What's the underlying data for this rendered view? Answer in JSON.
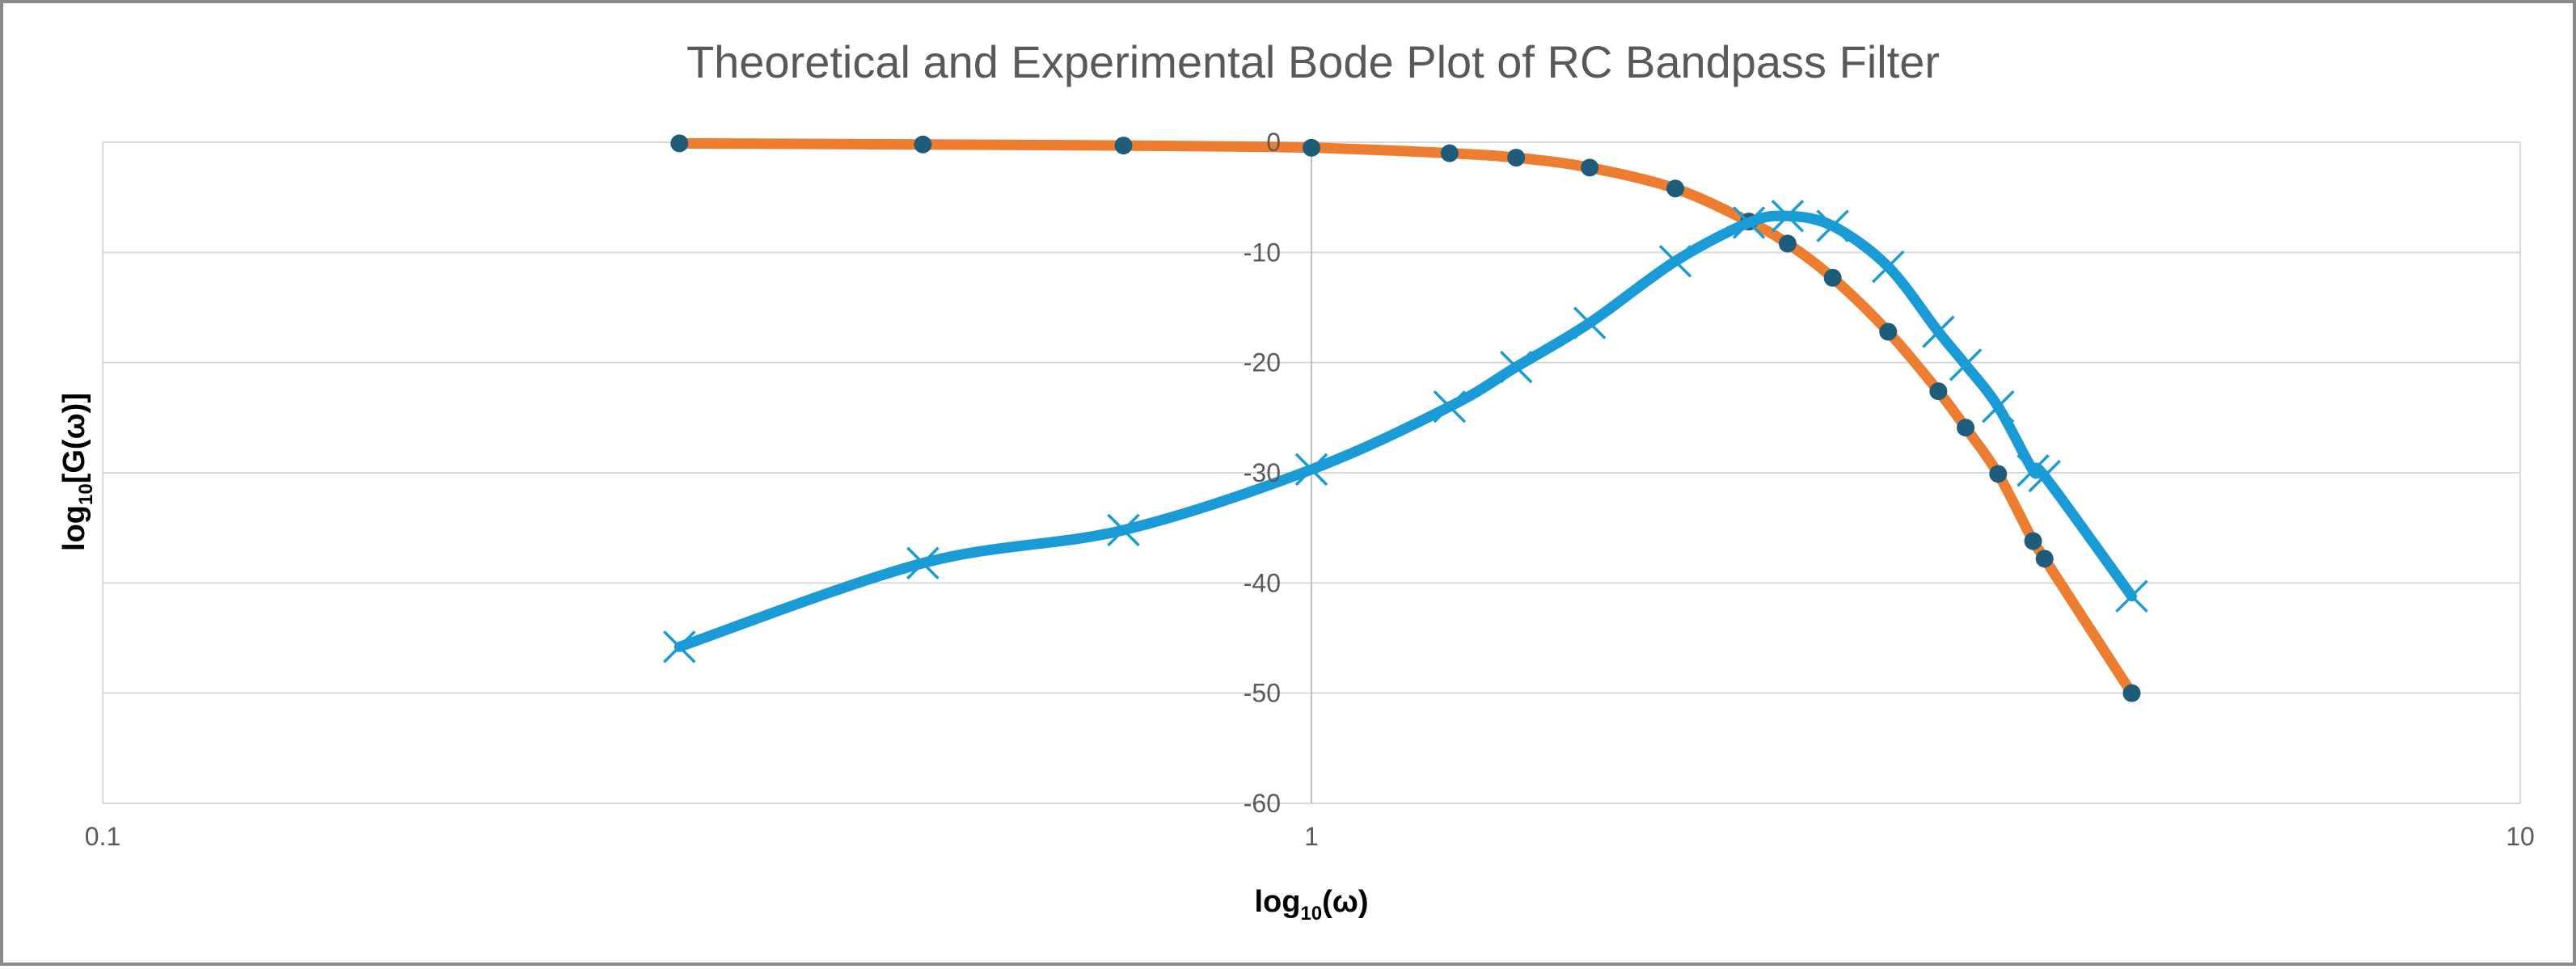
{
  "chart_data": {
    "type": "line",
    "title": "Theoretical and Experimental Bode Plot of RC Bandpass Filter",
    "xlabel": {
      "base": "log",
      "sub": "10",
      "rest": "(ω)"
    },
    "ylabel": {
      "base": "log",
      "sub": "10",
      "rest": "[G(ω)]"
    },
    "x_scale": "log",
    "xlim": [
      0.1,
      10
    ],
    "ylim": [
      -60,
      0
    ],
    "x_ticks": [
      "0.1",
      "1",
      "10"
    ],
    "y_ticks": [
      "0",
      "-10",
      "-20",
      "-30",
      "-40",
      "-50",
      "-60"
    ],
    "grid": "horizontal",
    "legend": "none",
    "series": [
      {
        "color": "#ED7D31",
        "marker_color": "#1F5C7A",
        "marker": "circle",
        "x": [
          0.3,
          0.477,
          0.699,
          1.0,
          1.301,
          1.477,
          1.699,
          2.0,
          2.301,
          2.477,
          2.699,
          3.0,
          3.301,
          3.477,
          3.699,
          3.954,
          4.041,
          4.771
        ],
        "y": [
          -0.1,
          -0.2,
          -0.3,
          -0.5,
          -1.0,
          -1.4,
          -2.3,
          -4.2,
          -7.2,
          -9.2,
          -12.3,
          -17.2,
          -22.6,
          -25.9,
          -30.1,
          -36.2,
          -37.8,
          -50.0
        ]
      },
      {
        "color": "#1A9BD6",
        "marker_color": "#1A9BD6",
        "marker": "x",
        "x": [
          0.3,
          0.477,
          0.699,
          1.0,
          1.301,
          1.477,
          1.699,
          2.0,
          2.301,
          2.477,
          2.699,
          3.0,
          3.301,
          3.477,
          3.699,
          3.954,
          4.041,
          4.771
        ],
        "y": [
          -45.8,
          -38.2,
          -35.2,
          -29.7,
          -24.0,
          -20.4,
          -16.4,
          -10.8,
          -7.3,
          -6.7,
          -7.6,
          -11.3,
          -17.2,
          -20.2,
          -24.0,
          -29.8,
          -30.3,
          -41.2
        ]
      }
    ]
  }
}
